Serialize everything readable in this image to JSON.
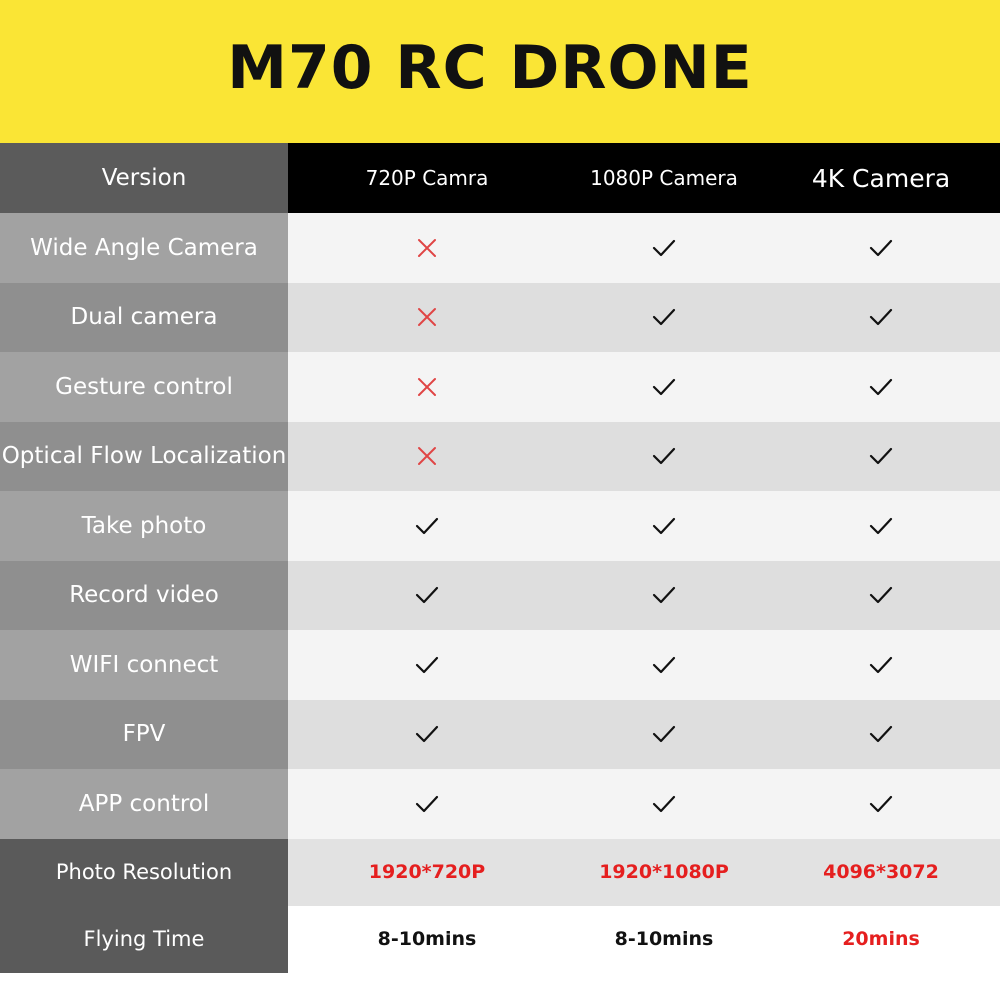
{
  "title": "M70 RC DRONE",
  "colors": {
    "banner": "#fae535",
    "cross": "#e04545",
    "check": "#111111",
    "spec_red": "#e51f1f"
  },
  "header": {
    "label": "Version",
    "columns": [
      "720P Camra",
      "1080P Camera",
      "4K Camera"
    ]
  },
  "features": [
    {
      "label": "Wide Angle Camera",
      "values": [
        "cross-icon",
        "check-icon",
        "check-icon"
      ]
    },
    {
      "label": "Dual camera",
      "values": [
        "cross-icon",
        "check-icon",
        "check-icon"
      ]
    },
    {
      "label": "Gesture control",
      "values": [
        "cross-icon",
        "check-icon",
        "check-icon"
      ]
    },
    {
      "label": "Optical Flow Localization",
      "values": [
        "cross-icon",
        "check-icon",
        "check-icon"
      ]
    },
    {
      "label": "Take photo",
      "values": [
        "check-icon",
        "check-icon",
        "check-icon"
      ]
    },
    {
      "label": "Record video",
      "values": [
        "check-icon",
        "check-icon",
        "check-icon"
      ]
    },
    {
      "label": "WIFI connect",
      "values": [
        "check-icon",
        "check-icon",
        "check-icon"
      ]
    },
    {
      "label": "FPV",
      "values": [
        "check-icon",
        "check-icon",
        "check-icon"
      ]
    },
    {
      "label": "APP control",
      "values": [
        "check-icon",
        "check-icon",
        "check-icon"
      ]
    }
  ],
  "specs": [
    {
      "label": "Photo Resolution",
      "values": [
        "1920*720P",
        "1920*1080P",
        "4096*3072"
      ],
      "colors": [
        "red",
        "red",
        "red"
      ]
    },
    {
      "label": "Flying Time",
      "values": [
        "8-10mins",
        "8-10mins",
        "20mins"
      ],
      "colors": [
        "black",
        "black",
        "red"
      ]
    }
  ]
}
